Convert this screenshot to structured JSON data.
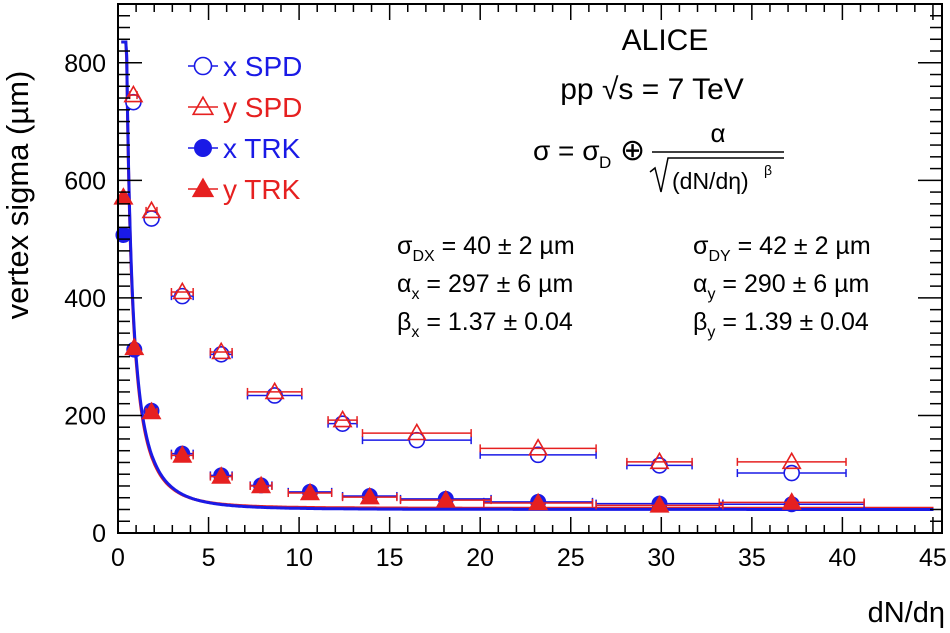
{
  "chart_data": {
    "type": "scatter",
    "title": "ALICE",
    "subtitle": "pp √s = 7 TeV",
    "xlabel": "dN/dη",
    "ylabel": "vertex sigma (µm)",
    "xlim": [
      0,
      45.5
    ],
    "ylim": [
      0,
      900
    ],
    "x_ticks": [
      0,
      5,
      10,
      15,
      20,
      25,
      30,
      35,
      40,
      45
    ],
    "y_ticks": [
      0,
      200,
      400,
      600,
      800
    ],
    "grid": false,
    "legend_position": "top-left",
    "formula": {
      "lhs": "σ = σ",
      "lhs_sub": "D",
      "op": "⊕",
      "numerator": "α",
      "denominator": "(dN/dη)",
      "denominator_sup": "β"
    },
    "fit_params": [
      {
        "sym": "σ",
        "sub": "DX",
        "text": " = 40 ± 2 µm"
      },
      {
        "sym": "α",
        "sub": "x",
        "text": " = 297 ± 6 µm"
      },
      {
        "sym": "β",
        "sub": "x",
        "text": " = 1.37 ± 0.04"
      },
      {
        "sym": "σ",
        "sub": "DY",
        "text": " = 42 ± 2 µm"
      },
      {
        "sym": "α",
        "sub": "y",
        "text": " = 290 ± 6 µm"
      },
      {
        "sym": "β",
        "sub": "y",
        "text": " = 1.39 ± 0.04"
      }
    ],
    "series": [
      {
        "name": "x SPD",
        "marker": "open-circle",
        "color": "#1a1ae6",
        "points": [
          {
            "x": 0.85,
            "y": 733,
            "xerr": 0.2
          },
          {
            "x": 1.85,
            "y": 535,
            "xerr": 0.3
          },
          {
            "x": 3.55,
            "y": 403,
            "xerr": 0.6
          },
          {
            "x": 5.7,
            "y": 304,
            "xerr": 0.6
          },
          {
            "x": 8.65,
            "y": 234,
            "xerr": 1.5
          },
          {
            "x": 12.4,
            "y": 186,
            "xerr": 0.8
          },
          {
            "x": 16.5,
            "y": 158,
            "xerr": 3.0
          },
          {
            "x": 23.2,
            "y": 133,
            "xerr": 3.2
          },
          {
            "x": 29.9,
            "y": 115,
            "xerr": 1.8
          },
          {
            "x": 37.2,
            "y": 102,
            "xerr": 3.0
          }
        ]
      },
      {
        "name": "y SPD",
        "marker": "open-triangle",
        "color": "#e62020",
        "points": [
          {
            "x": 0.85,
            "y": 745,
            "xerr": 0.2
          },
          {
            "x": 1.85,
            "y": 548,
            "xerr": 0.3
          },
          {
            "x": 3.55,
            "y": 410,
            "xerr": 0.6
          },
          {
            "x": 5.7,
            "y": 308,
            "xerr": 0.6
          },
          {
            "x": 8.65,
            "y": 240,
            "xerr": 1.5
          },
          {
            "x": 12.4,
            "y": 192,
            "xerr": 0.8
          },
          {
            "x": 16.5,
            "y": 170,
            "xerr": 3.0
          },
          {
            "x": 23.2,
            "y": 144,
            "xerr": 3.2
          },
          {
            "x": 29.9,
            "y": 121,
            "xerr": 1.8
          },
          {
            "x": 37.2,
            "y": 121,
            "xerr": 3.0
          }
        ]
      },
      {
        "name": "x TRK",
        "marker": "filled-circle",
        "color": "#1a1ae6",
        "points": [
          {
            "x": 0.3,
            "y": 507,
            "xerr": 0.1
          },
          {
            "x": 0.9,
            "y": 312,
            "xerr": 0.2
          },
          {
            "x": 1.85,
            "y": 208,
            "xerr": 0.3
          },
          {
            "x": 3.55,
            "y": 135,
            "xerr": 0.6
          },
          {
            "x": 5.7,
            "y": 98,
            "xerr": 0.6
          },
          {
            "x": 7.9,
            "y": 81,
            "xerr": 0.6
          },
          {
            "x": 10.6,
            "y": 70,
            "xerr": 1.2
          },
          {
            "x": 13.9,
            "y": 63,
            "xerr": 1.5
          },
          {
            "x": 18.1,
            "y": 58,
            "xerr": 2.5
          },
          {
            "x": 23.2,
            "y": 53,
            "xerr": 3.0
          },
          {
            "x": 29.9,
            "y": 50,
            "xerr": 3.5
          },
          {
            "x": 37.2,
            "y": 49,
            "xerr": 4.0
          }
        ]
      },
      {
        "name": "y TRK",
        "marker": "filled-triangle",
        "color": "#e62020",
        "points": [
          {
            "x": 0.3,
            "y": 571,
            "xerr": 0.1
          },
          {
            "x": 0.9,
            "y": 315,
            "xerr": 0.2
          },
          {
            "x": 1.85,
            "y": 206,
            "xerr": 0.3
          },
          {
            "x": 3.55,
            "y": 132,
            "xerr": 0.6
          },
          {
            "x": 5.7,
            "y": 96,
            "xerr": 0.6
          },
          {
            "x": 7.9,
            "y": 80,
            "xerr": 0.6
          },
          {
            "x": 10.6,
            "y": 68,
            "xerr": 1.2
          },
          {
            "x": 13.9,
            "y": 61,
            "xerr": 1.5
          },
          {
            "x": 18.1,
            "y": 56,
            "xerr": 2.5
          },
          {
            "x": 23.2,
            "y": 51,
            "xerr": 3.0
          },
          {
            "x": 29.9,
            "y": 47,
            "xerr": 3.5
          },
          {
            "x": 37.2,
            "y": 52,
            "xerr": 4.0
          }
        ]
      }
    ],
    "fits": [
      {
        "color": "#e62020",
        "sigma_d": 42,
        "alpha": 290,
        "beta": 1.39
      },
      {
        "color": "#1a1ae6",
        "sigma_d": 40,
        "alpha": 297,
        "beta": 1.37
      }
    ]
  }
}
